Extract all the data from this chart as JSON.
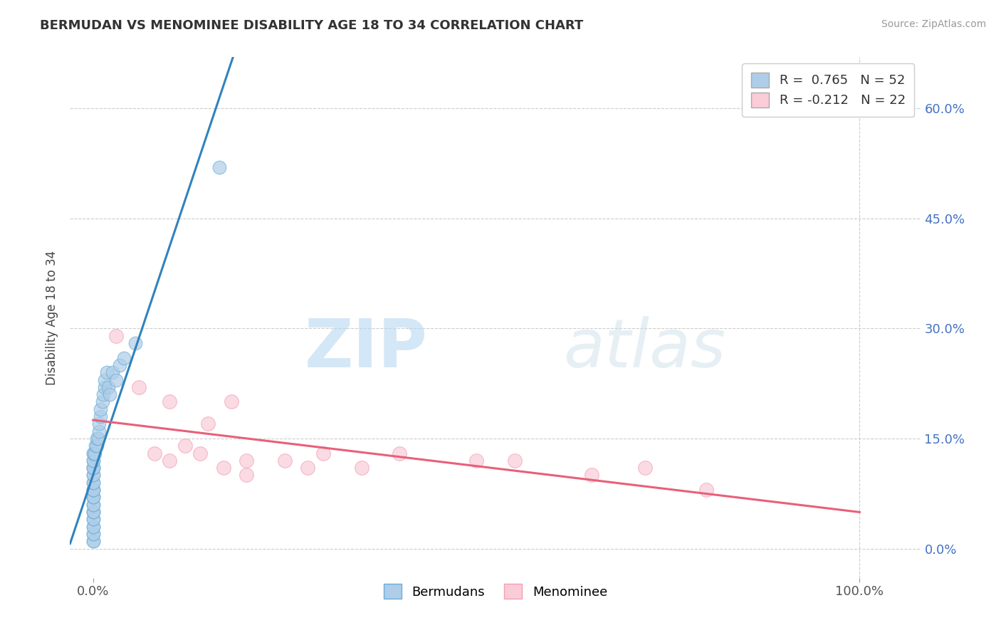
{
  "title": "BERMUDAN VS MENOMINEE DISABILITY AGE 18 TO 34 CORRELATION CHART",
  "source": "Source: ZipAtlas.com",
  "ylabel_label": "Disability Age 18 to 34",
  "y_tick_labels": [
    "0.0%",
    "15.0%",
    "30.0%",
    "45.0%",
    "60.0%"
  ],
  "y_tick_values": [
    0.0,
    0.15,
    0.3,
    0.45,
    0.6
  ],
  "x_tick_labels": [
    "0.0%",
    "100.0%"
  ],
  "x_tick_values": [
    0.0,
    1.0
  ],
  "xlim": [
    -0.03,
    1.08
  ],
  "ylim": [
    -0.04,
    0.67
  ],
  "R_bermudan": 0.765,
  "N_bermudan": 52,
  "R_menominee": -0.212,
  "N_menominee": 22,
  "bermudan_color": "#6baed6",
  "bermudan_fill": "#aecde8",
  "menominee_color": "#f4a0b5",
  "menominee_fill": "#f9ccd8",
  "trend_bermudan_color": "#3182bd",
  "trend_menominee_color": "#e8607a",
  "legend_box_bermudan": "#aecde8",
  "legend_box_menominee": "#f9ccd8",
  "ytick_color": "#4472c4",
  "xtick_color": "#555555",
  "watermark_zip": "ZIP",
  "watermark_atlas": "atlas",
  "background_color": "#ffffff",
  "grid_color": "#cccccc",
  "bermudan_x": [
    0.0,
    0.0,
    0.0,
    0.0,
    0.0,
    0.0,
    0.0,
    0.0,
    0.0,
    0.0,
    0.0,
    0.0,
    0.0,
    0.0,
    0.0,
    0.0,
    0.0,
    0.0,
    0.0,
    0.0,
    0.0,
    0.0,
    0.0,
    0.0,
    0.0,
    0.0,
    0.0,
    0.0,
    0.0,
    0.0,
    0.002,
    0.003,
    0.005,
    0.005,
    0.007,
    0.008,
    0.008,
    0.01,
    0.01,
    0.012,
    0.013,
    0.015,
    0.015,
    0.018,
    0.02,
    0.022,
    0.025,
    0.03,
    0.035,
    0.04,
    0.055,
    0.165
  ],
  "bermudan_y": [
    0.01,
    0.01,
    0.02,
    0.02,
    0.03,
    0.03,
    0.04,
    0.04,
    0.05,
    0.05,
    0.05,
    0.06,
    0.06,
    0.07,
    0.07,
    0.07,
    0.08,
    0.08,
    0.08,
    0.09,
    0.09,
    0.1,
    0.1,
    0.11,
    0.11,
    0.11,
    0.12,
    0.12,
    0.13,
    0.13,
    0.13,
    0.14,
    0.14,
    0.15,
    0.15,
    0.16,
    0.17,
    0.18,
    0.19,
    0.2,
    0.21,
    0.22,
    0.23,
    0.24,
    0.22,
    0.21,
    0.24,
    0.23,
    0.25,
    0.26,
    0.28,
    0.52
  ],
  "menominee_x": [
    0.03,
    0.06,
    0.08,
    0.1,
    0.1,
    0.12,
    0.14,
    0.15,
    0.17,
    0.18,
    0.2,
    0.2,
    0.25,
    0.28,
    0.3,
    0.35,
    0.4,
    0.5,
    0.55,
    0.65,
    0.72,
    0.8
  ],
  "menominee_y": [
    0.29,
    0.22,
    0.13,
    0.12,
    0.2,
    0.14,
    0.13,
    0.17,
    0.11,
    0.2,
    0.12,
    0.1,
    0.12,
    0.11,
    0.13,
    0.11,
    0.13,
    0.12,
    0.12,
    0.1,
    0.11,
    0.08
  ]
}
